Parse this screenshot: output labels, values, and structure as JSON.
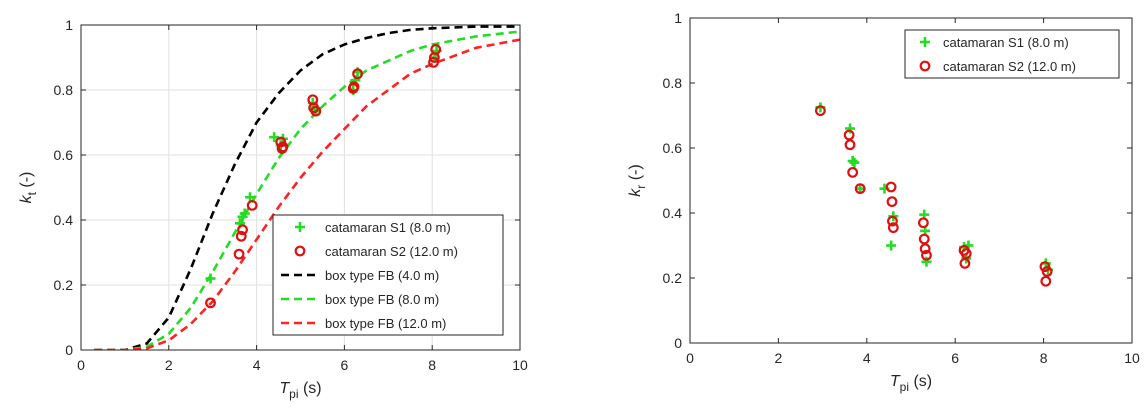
{
  "chart_data": [
    {
      "type": "scatter",
      "xlabel": "T",
      "xlabel_sub": "pi",
      "xlabel_unit": " (s)",
      "ylabel": "k",
      "ylabel_sub": "t",
      "ylabel_unit": " (-)",
      "xlim": [
        0,
        10
      ],
      "ylim": [
        0,
        1
      ],
      "xticks": [
        "0",
        "2",
        "4",
        "6",
        "8",
        "10"
      ],
      "yticks": [
        "0",
        "0.2",
        "0.4",
        "0.6",
        "0.8",
        "1"
      ],
      "grid": true,
      "legend_position": "bottom-right",
      "series": [
        {
          "name": "catamaran S1 (8.0 m)",
          "marker": "plus",
          "color": "#22dd22",
          "x": [
            2.95,
            3.62,
            3.68,
            3.73,
            3.85,
            4.4,
            4.55,
            4.6,
            5.28,
            5.32,
            5.35,
            6.2,
            6.25,
            6.3,
            8.05,
            8.1
          ],
          "y": [
            0.22,
            0.39,
            0.41,
            0.42,
            0.47,
            0.655,
            0.63,
            0.65,
            0.76,
            0.745,
            0.735,
            0.8,
            0.83,
            0.855,
            0.9,
            0.92
          ]
        },
        {
          "name": "catamaran S2 (12.0 m)",
          "marker": "circle",
          "color": "#dd1111",
          "x": [
            2.95,
            3.6,
            3.65,
            3.68,
            3.9,
            4.55,
            4.58,
            4.6,
            5.28,
            5.3,
            5.35,
            6.2,
            6.22,
            6.3,
            8.03,
            8.05,
            8.08
          ],
          "y": [
            0.145,
            0.295,
            0.35,
            0.37,
            0.445,
            0.64,
            0.62,
            0.625,
            0.77,
            0.745,
            0.735,
            0.805,
            0.81,
            0.85,
            0.885,
            0.9,
            0.925
          ]
        },
        {
          "name": "box type FB (4.0 m)",
          "type": "line",
          "dash": true,
          "color": "#000000",
          "x": [
            0.3,
            1.0,
            1.5,
            2.0,
            2.5,
            3.0,
            3.5,
            4.0,
            4.5,
            5.0,
            5.5,
            6.0,
            6.5,
            7.0,
            7.5,
            8.0,
            9.0,
            10.0
          ],
          "y": [
            0.0,
            0.0,
            0.02,
            0.1,
            0.25,
            0.42,
            0.57,
            0.7,
            0.79,
            0.86,
            0.91,
            0.94,
            0.96,
            0.975,
            0.985,
            0.99,
            0.995,
            0.995
          ]
        },
        {
          "name": "box type FB (8.0 m)",
          "type": "line",
          "dash": true,
          "color": "#22dd22",
          "x": [
            0.3,
            1.0,
            1.5,
            2.0,
            2.5,
            3.0,
            3.5,
            4.0,
            4.5,
            5.0,
            5.5,
            6.0,
            6.5,
            7.0,
            7.5,
            8.0,
            9.0,
            10.0
          ],
          "y": [
            0.0,
            0.0,
            0.01,
            0.05,
            0.13,
            0.24,
            0.36,
            0.48,
            0.59,
            0.68,
            0.75,
            0.81,
            0.86,
            0.89,
            0.92,
            0.94,
            0.965,
            0.98
          ]
        },
        {
          "name": "box type FB (12.0 m)",
          "type": "line",
          "dash": true,
          "color": "#ff2222",
          "x": [
            0.3,
            1.0,
            1.5,
            2.0,
            2.5,
            3.0,
            3.5,
            4.0,
            4.5,
            5.0,
            5.5,
            6.0,
            6.5,
            7.0,
            7.5,
            8.0,
            9.0,
            10.0
          ],
          "y": [
            0.0,
            0.0,
            0.005,
            0.03,
            0.08,
            0.15,
            0.24,
            0.34,
            0.44,
            0.53,
            0.61,
            0.68,
            0.75,
            0.8,
            0.85,
            0.88,
            0.93,
            0.955
          ]
        }
      ]
    },
    {
      "type": "scatter",
      "xlabel": "T",
      "xlabel_sub": "pi",
      "xlabel_unit": " (s)",
      "ylabel": "k",
      "ylabel_sub": "r",
      "ylabel_unit": " (-)",
      "xlim": [
        0,
        10
      ],
      "ylim": [
        0,
        1
      ],
      "xticks": [
        "0",
        "2",
        "4",
        "6",
        "8",
        "10"
      ],
      "yticks": [
        "0",
        "0.2",
        "0.4",
        "0.6",
        "0.8",
        "1"
      ],
      "grid": false,
      "legend_position": "top-right",
      "series": [
        {
          "name": "catamaran S1 (8.0 m)",
          "marker": "plus",
          "color": "#22dd22",
          "x": [
            2.95,
            3.62,
            3.68,
            3.72,
            3.85,
            4.4,
            4.55,
            4.6,
            5.3,
            5.32,
            5.35,
            6.2,
            6.25,
            6.3,
            8.05,
            8.1
          ],
          "y": [
            0.725,
            0.66,
            0.56,
            0.555,
            0.475,
            0.475,
            0.3,
            0.39,
            0.395,
            0.345,
            0.25,
            0.295,
            0.26,
            0.3,
            0.245,
            0.225
          ]
        },
        {
          "name": "catamaran S2 (12.0 m)",
          "marker": "circle",
          "color": "#dd1111",
          "x": [
            2.95,
            3.6,
            3.62,
            3.68,
            3.85,
            4.55,
            4.57,
            4.58,
            4.6,
            5.28,
            5.3,
            5.32,
            5.35,
            6.2,
            6.22,
            6.25,
            8.03,
            8.05,
            8.08
          ],
          "y": [
            0.715,
            0.64,
            0.61,
            0.525,
            0.475,
            0.48,
            0.435,
            0.375,
            0.355,
            0.37,
            0.32,
            0.29,
            0.27,
            0.285,
            0.245,
            0.275,
            0.235,
            0.19,
            0.22
          ]
        }
      ]
    }
  ]
}
